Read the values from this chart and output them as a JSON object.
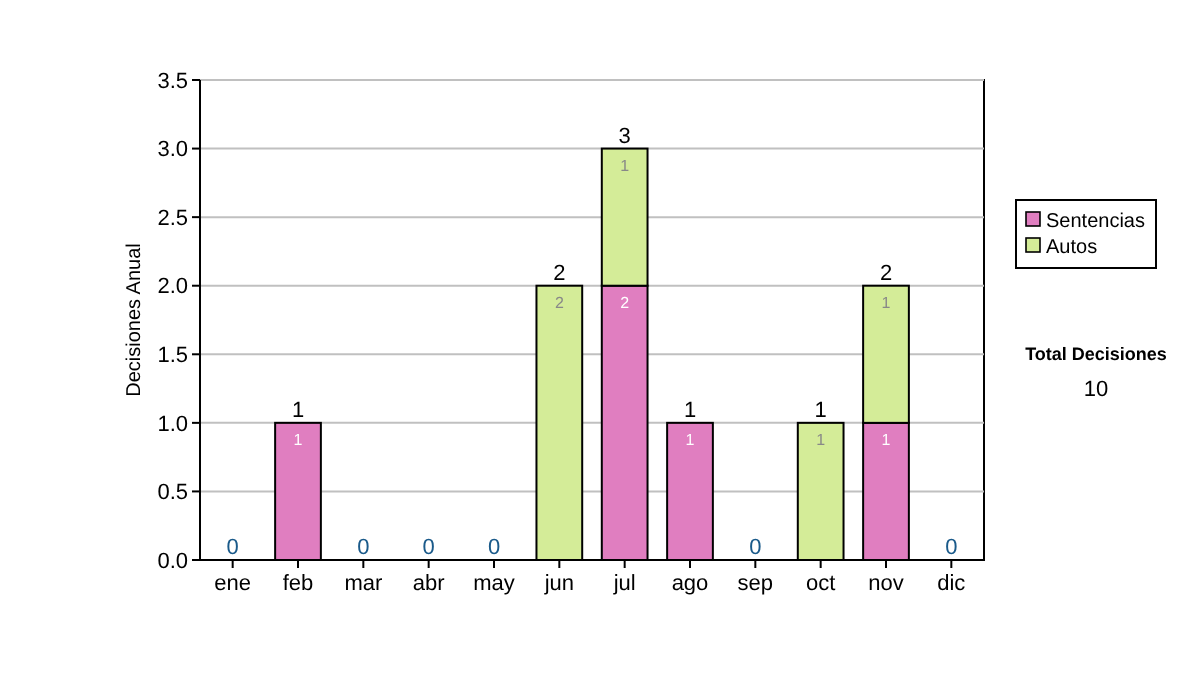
{
  "chart_data": {
    "type": "bar",
    "stacked": true,
    "ylabel": "Decisiones Anual",
    "categories": [
      "ene",
      "feb",
      "mar",
      "abr",
      "may",
      "jun",
      "jul",
      "ago",
      "sep",
      "oct",
      "nov",
      "dic"
    ],
    "series": [
      {
        "name": "Sentencias",
        "color": "#e07ec0",
        "values": [
          0,
          1,
          0,
          0,
          0,
          0,
          2,
          1,
          0,
          0,
          1,
          0
        ],
        "value_labels": [
          null,
          "1",
          null,
          null,
          null,
          null,
          "2",
          "1",
          null,
          null,
          "1",
          null
        ]
      },
      {
        "name": "Autos",
        "color": "#d4ec98",
        "values": [
          0,
          0,
          0,
          0,
          0,
          2,
          1,
          0,
          0,
          1,
          1,
          0
        ],
        "value_labels": [
          null,
          null,
          null,
          null,
          null,
          "2",
          "1",
          null,
          null,
          "1",
          "1",
          null
        ]
      }
    ],
    "totals": [
      "0",
      "1",
      "0",
      "0",
      "0",
      "2",
      "3",
      "1",
      "0",
      "1",
      "2",
      "0"
    ],
    "ylim": [
      0,
      3.5
    ],
    "yticks": [
      {
        "value": 0,
        "label": "0.0"
      },
      {
        "value": 0.5,
        "label": "0.5"
      },
      {
        "value": 1,
        "label": "1.0"
      },
      {
        "value": 1.5,
        "label": "1.5"
      },
      {
        "value": 2,
        "label": "2.0"
      },
      {
        "value": 2.5,
        "label": "2.5"
      },
      {
        "value": 3,
        "label": "3.0"
      },
      {
        "value": 3.5,
        "label": "3.5"
      }
    ],
    "grid": "y",
    "legend": "right",
    "annotations": [
      "Total Decisiones",
      "10"
    ]
  }
}
